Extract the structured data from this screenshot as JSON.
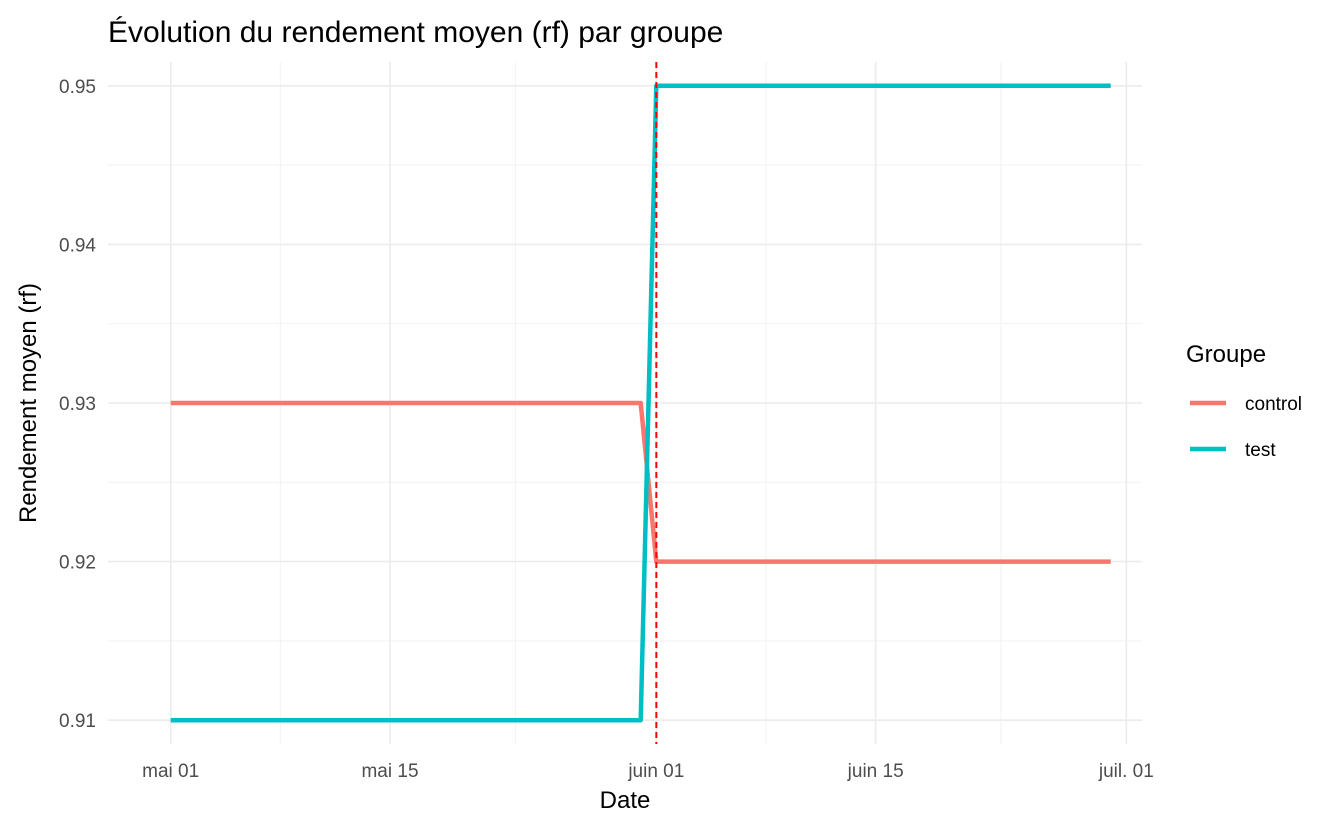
{
  "chart_data": {
    "type": "line",
    "title": "Évolution du rendement moyen (rf) par groupe",
    "xlabel": "Date",
    "ylabel": "Rendement moyen (rf)",
    "x_axis": {
      "type": "date",
      "range": [
        "2024-04-27",
        "2024-07-02"
      ],
      "ticks": [
        {
          "date": "2024-05-01",
          "label": "mai 01"
        },
        {
          "date": "2024-05-15",
          "label": "mai 15"
        },
        {
          "date": "2024-06-01",
          "label": "juin 01"
        },
        {
          "date": "2024-06-15",
          "label": "juin 15"
        },
        {
          "date": "2024-07-01",
          "label": "juil. 01"
        }
      ],
      "minor_ticks": [
        "2024-05-08",
        "2024-05-23",
        "2024-06-08",
        "2024-06-23"
      ]
    },
    "y_axis": {
      "range": [
        0.9085,
        0.9515
      ],
      "ticks": [
        {
          "value": 0.91,
          "label": "0.91"
        },
        {
          "value": 0.92,
          "label": "0.92"
        },
        {
          "value": 0.93,
          "label": "0.93"
        },
        {
          "value": 0.94,
          "label": "0.94"
        },
        {
          "value": 0.95,
          "label": "0.95"
        }
      ],
      "minor_ticks": [
        0.915,
        0.925,
        0.935,
        0.945
      ]
    },
    "grid": true,
    "legend": {
      "title": "Groupe",
      "position": "right"
    },
    "reference_line": {
      "date": "2024-06-01",
      "color": "#ff0000",
      "style": "dashed"
    },
    "series": [
      {
        "name": "control",
        "color": "#f8766d",
        "points": [
          {
            "x": "2024-05-01",
            "y": 0.93
          },
          {
            "x": "2024-05-31",
            "y": 0.93
          },
          {
            "x": "2024-06-01",
            "y": 0.92
          },
          {
            "x": "2024-06-30",
            "y": 0.92
          }
        ]
      },
      {
        "name": "test",
        "color": "#00bfc4",
        "points": [
          {
            "x": "2024-05-01",
            "y": 0.91
          },
          {
            "x": "2024-05-31",
            "y": 0.91
          },
          {
            "x": "2024-06-01",
            "y": 0.95
          },
          {
            "x": "2024-06-30",
            "y": 0.95
          }
        ]
      }
    ]
  }
}
